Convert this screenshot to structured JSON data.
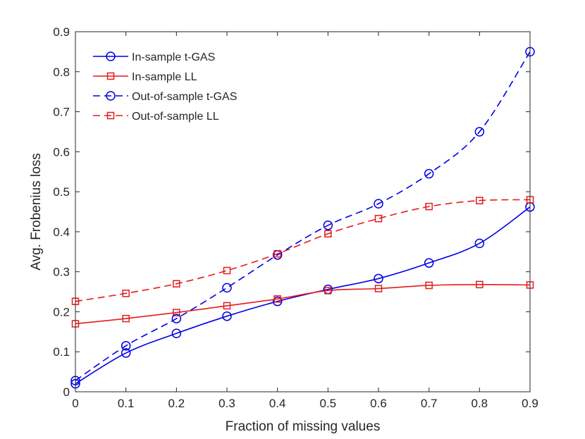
{
  "chart_data": {
    "type": "line",
    "title": "",
    "xlabel": "Fraction of missing values",
    "ylabel": "Avg. Frobenius loss",
    "xlim": [
      0,
      0.9
    ],
    "ylim": [
      0,
      0.9
    ],
    "x": [
      0,
      0.1,
      0.2,
      0.3,
      0.4,
      0.5,
      0.6,
      0.7,
      0.8,
      0.9
    ],
    "xticks": [
      "0",
      "0.1",
      "0.2",
      "0.3",
      "0.4",
      "0.5",
      "0.6",
      "0.7",
      "0.8",
      "0.9"
    ],
    "yticks": [
      "0",
      "0.1",
      "0.2",
      "0.3",
      "0.4",
      "0.5",
      "0.6",
      "0.7",
      "0.8",
      "0.9"
    ],
    "grid": false,
    "legend_position": "top-left",
    "series": [
      {
        "name": "In-sample t-GAS",
        "color": "#0000e6",
        "line": "solid",
        "marker": "circle",
        "values": [
          0.02,
          0.097,
          0.146,
          0.189,
          0.226,
          0.256,
          0.283,
          0.322,
          0.371,
          0.462
        ]
      },
      {
        "name": "In-sample LL",
        "color": "#e61a1a",
        "line": "solid",
        "marker": "square",
        "values": [
          0.17,
          0.183,
          0.198,
          0.215,
          0.232,
          0.253,
          0.258,
          0.266,
          0.268,
          0.267
        ]
      },
      {
        "name": "Out-of-sample t-GAS",
        "color": "#0000e6",
        "line": "dashed",
        "marker": "circle",
        "values": [
          0.028,
          0.115,
          0.183,
          0.26,
          0.342,
          0.416,
          0.47,
          0.545,
          0.65,
          0.85
        ]
      },
      {
        "name": "Out-of-sample LL",
        "color": "#e61a1a",
        "line": "dashed",
        "marker": "square",
        "values": [
          0.226,
          0.246,
          0.27,
          0.303,
          0.345,
          0.395,
          0.433,
          0.463,
          0.478,
          0.48
        ]
      }
    ]
  }
}
